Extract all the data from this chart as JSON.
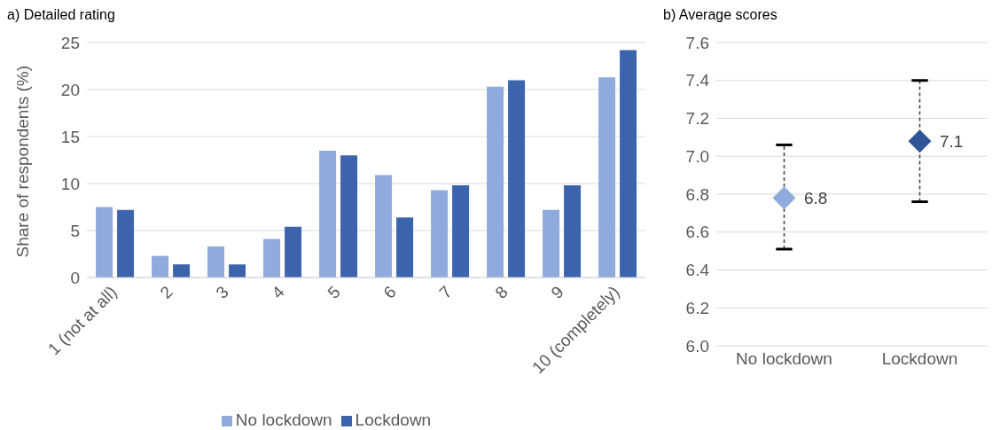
{
  "chart_data": [
    {
      "type": "bar",
      "title": "a) Detailed rating",
      "ylabel": "Share of respondents (%)",
      "categories": [
        "1 (not at all)",
        "2",
        "3",
        "4",
        "5",
        "6",
        "7",
        "8",
        "9",
        "10 (completely)"
      ],
      "series": [
        {
          "name": "No lockdown",
          "color": "#8faadc",
          "values": [
            7.5,
            2.3,
            3.3,
            4.1,
            13.5,
            10.9,
            9.3,
            20.3,
            7.2,
            21.3
          ]
        },
        {
          "name": "Lockdown",
          "color": "#3c64ad",
          "values": [
            7.2,
            1.4,
            1.4,
            5.4,
            13.0,
            6.4,
            9.8,
            21.0,
            9.8,
            24.2
          ]
        }
      ],
      "ylim": [
        0,
        25
      ],
      "yticks": [
        0,
        5,
        10,
        15,
        20,
        25
      ],
      "grid": "y",
      "legend": "bottom"
    },
    {
      "type": "scatter",
      "title": "b) Average scores",
      "categories": [
        "No lockdown",
        "Lockdown"
      ],
      "values": [
        6.78,
        7.08
      ],
      "colors": [
        "#8faadc",
        "#2f5597"
      ],
      "errors": [
        [
          6.51,
          7.06
        ],
        [
          6.76,
          7.4
        ]
      ],
      "value_labels": [
        "6.8",
        "7.1"
      ],
      "marker": "diamond",
      "line_style": "dashed",
      "ylim": [
        6.0,
        7.6
      ],
      "yticks": [
        {
          "value": 6,
          "label": "6.0"
        },
        {
          "value": 6.2,
          "label": "6.2"
        },
        {
          "value": 6.4,
          "label": "6.4"
        },
        {
          "value": 6.6,
          "label": "6.6"
        },
        {
          "value": 6.8,
          "label": "6.8"
        },
        {
          "value": 7,
          "label": "7.0"
        },
        {
          "value": 7.2,
          "label": "7.2"
        },
        {
          "value": 7.4,
          "label": "7.4"
        },
        {
          "value": 7.6,
          "label": "7.6"
        }
      ],
      "grid": "y"
    }
  ]
}
